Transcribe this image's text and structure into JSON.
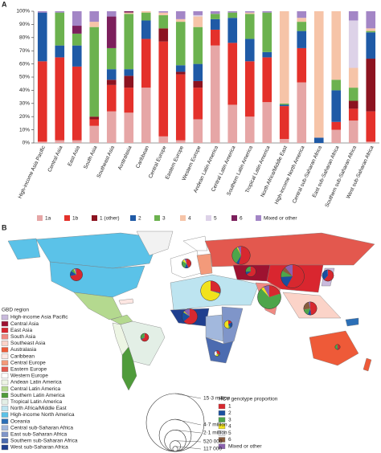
{
  "panels": [
    "A",
    "B"
  ],
  "chart_data": {
    "type": "bar",
    "stacked": true,
    "categories": [
      "High-income Asia Pacific",
      "Central Asia",
      "East Asia",
      "South Asia",
      "Southeast Asia",
      "Australasia",
      "Caribbean",
      "Central Europe",
      "Eastern Europe",
      "Western Europe",
      "Andean Latin America",
      "Central Latin America",
      "Southern Latin America",
      "Tropical Latin America",
      "North Africa/Middle East",
      "High-income North America",
      "Central sub-Saharan Africa",
      "East sub-Saharan Africa",
      "Southern sub-Saharan Africa",
      "West sub-Saharan Africa"
    ],
    "series": [
      {
        "name": "1a",
        "color": "#e6a6a6",
        "values": [
          1,
          2,
          2,
          13,
          24,
          23,
          42,
          5,
          2,
          18,
          74,
          29,
          20,
          31,
          3,
          46,
          0,
          10,
          17,
          1
        ]
      },
      {
        "name": "1b",
        "color": "#e4312b",
        "values": [
          61,
          63,
          56,
          5,
          20,
          19,
          37,
          72,
          50,
          24,
          12,
          47,
          42,
          34,
          25,
          26,
          0,
          6,
          9,
          23
        ]
      },
      {
        "name": "1 (other)",
        "color": "#8c1320",
        "values": [
          0,
          0,
          0,
          2,
          4,
          9,
          0,
          10,
          2,
          5,
          0,
          0,
          0,
          0,
          0,
          0,
          0,
          0,
          6,
          40
        ]
      },
      {
        "name": "2",
        "color": "#1f5aa6",
        "values": [
          37,
          9,
          16,
          0,
          8,
          5,
          14,
          0,
          5,
          13,
          8,
          19,
          17,
          4,
          1,
          13,
          4,
          24,
          0,
          20
        ]
      },
      {
        "name": "3",
        "color": "#6cb24f",
        "values": [
          0,
          25,
          9,
          68,
          16,
          42,
          6,
          10,
          33,
          28,
          4,
          4,
          19,
          30,
          1,
          7,
          0,
          8,
          10,
          1
        ]
      },
      {
        "name": "4",
        "color": "#f6c4a8",
        "values": [
          0,
          0,
          0,
          4,
          0,
          1,
          1,
          2,
          2,
          8,
          0,
          0,
          1,
          0,
          70,
          3,
          96,
          52,
          15,
          2
        ]
      },
      {
        "name": "5",
        "color": "#ddd2e8",
        "values": [
          0,
          0,
          0,
          0,
          0,
          0,
          0,
          0,
          0,
          1,
          0,
          0,
          0,
          0,
          0,
          0,
          0,
          0,
          36,
          0
        ]
      },
      {
        "name": "6",
        "color": "#7c1f5c",
        "values": [
          0,
          0,
          6,
          0,
          24,
          1,
          0,
          0,
          0,
          0,
          0,
          0,
          0,
          0,
          0,
          0,
          0,
          0,
          0,
          0
        ]
      },
      {
        "name": "Mixed or other",
        "color": "#a386c6",
        "values": [
          1,
          1,
          11,
          8,
          4,
          0,
          0,
          1,
          6,
          3,
          2,
          1,
          1,
          1,
          0,
          5,
          0,
          0,
          7,
          13
        ]
      }
    ],
    "ylim": [
      0,
      100
    ],
    "yticks": [
      {
        "value": 0,
        "label": "0%"
      },
      {
        "value": 10,
        "label": "10%"
      },
      {
        "value": 20,
        "label": "20%"
      },
      {
        "value": 30,
        "label": "30%"
      },
      {
        "value": 40,
        "label": "40%"
      },
      {
        "value": 50,
        "label": "50%"
      },
      {
        "value": 60,
        "label": "60%"
      },
      {
        "value": 70,
        "label": "70%"
      },
      {
        "value": 80,
        "label": "80%"
      },
      {
        "value": 90,
        "label": "90%"
      },
      {
        "value": 100,
        "label": "100%"
      }
    ]
  },
  "map": {
    "region_legend": {
      "title": "GBD region",
      "items": [
        {
          "name": "High-income Asia Pacific",
          "color": "#c9badd"
        },
        {
          "name": "Central Asia",
          "color": "#9e1230"
        },
        {
          "name": "East Asia",
          "color": "#d9262f"
        },
        {
          "name": "South Asia",
          "color": "#f08a82"
        },
        {
          "name": "Southeast Asia",
          "color": "#fbd3c8"
        },
        {
          "name": "Australasia",
          "color": "#ee5a38"
        },
        {
          "name": "Caribbean",
          "color": "#fde6e2"
        },
        {
          "name": "Central Europe",
          "color": "#f39a7a"
        },
        {
          "name": "Eastern Europe",
          "color": "#e3584e"
        },
        {
          "name": "Western Europe",
          "color": "#ffffff"
        },
        {
          "name": "Andean Latin America",
          "color": "#edf5e4"
        },
        {
          "name": "Central Latin America",
          "color": "#b4d98f"
        },
        {
          "name": "Southern Latin America",
          "color": "#4f9b3b"
        },
        {
          "name": "Tropical Latin America",
          "color": "#e3efe6"
        },
        {
          "name": "North Africa/Middle East",
          "color": "#bde4f0"
        },
        {
          "name": "High-income North America",
          "color": "#5bc2e8"
        },
        {
          "name": "Oceania",
          "color": "#2b6fb7"
        },
        {
          "name": "Central sub-Saharan Africa",
          "color": "#a2b8dd"
        },
        {
          "name": "East sub-Saharan Africa",
          "color": "#7f95c9"
        },
        {
          "name": "Southern sub-Saharan Africa",
          "color": "#4b6bb0"
        },
        {
          "name": "West sub-Saharan Africa",
          "color": "#1f3f8f"
        }
      ]
    },
    "genotype_legend": {
      "title": "HCV genotype proportion",
      "items": [
        {
          "name": "1",
          "color": "#d7282f"
        },
        {
          "name": "2",
          "color": "#1a4fa0"
        },
        {
          "name": "3",
          "color": "#4da54a"
        },
        {
          "name": "4",
          "color": "#f2e21c"
        },
        {
          "name": "5",
          "color": "#eef0f6"
        },
        {
          "name": "6",
          "color": "#8a5a3c"
        },
        {
          "name": "Mixed or other",
          "color": "#8c62b0"
        }
      ]
    },
    "size_legend": {
      "values": [
        {
          "value": 15300000,
          "label": "15·3 million"
        },
        {
          "value": 4700000,
          "label": "4·7 million"
        },
        {
          "value": 2100000,
          "label": "2·1 million"
        },
        {
          "value": 520000,
          "label": "520 000"
        },
        {
          "value": 117000,
          "label": "117 000"
        }
      ]
    },
    "pies": [
      {
        "size": 700000,
        "values": [
          72,
          13,
          7,
          3,
          0,
          0,
          5
        ]
      },
      {
        "size": 300000,
        "values": [
          65,
          4,
          30,
          0,
          0,
          0,
          1
        ]
      },
      {
        "size": 400000,
        "values": [
          43,
          13,
          28,
          8,
          1,
          0,
          7
        ]
      },
      {
        "size": 1500000,
        "values": [
          54,
          5,
          33,
          2,
          0,
          0,
          6
        ]
      },
      {
        "size": 1800000,
        "values": [
          28,
          1,
          1,
          70,
          0,
          0,
          0
        ]
      },
      {
        "size": 1100000,
        "values": [
          64,
          20,
          1,
          2,
          0,
          0,
          13
        ]
      },
      {
        "size": 2500000,
        "values": [
          20,
          0,
          68,
          4,
          0,
          0,
          8
        ]
      },
      {
        "size": 2500000,
        "values": [
          58,
          16,
          9,
          0,
          0,
          6,
          11
        ]
      },
      {
        "size": 800000,
        "values": [
          48,
          8,
          16,
          0,
          0,
          24,
          4
        ]
      },
      {
        "size": 300000,
        "values": [
          16,
          24,
          8,
          52,
          0,
          0,
          0
        ]
      },
      {
        "size": 150000,
        "values": [
          34,
          0,
          10,
          15,
          36,
          0,
          7
        ]
      },
      {
        "size": 500000,
        "values": [
          65,
          9,
          25,
          0,
          0,
          0,
          1
        ]
      },
      {
        "size": 600000,
        "values": [
          62,
          37,
          0,
          0,
          0,
          0,
          1
        ]
      },
      {
        "size": 120000,
        "values": [
          42,
          5,
          42,
          1,
          0,
          1,
          0
        ]
      }
    ]
  }
}
